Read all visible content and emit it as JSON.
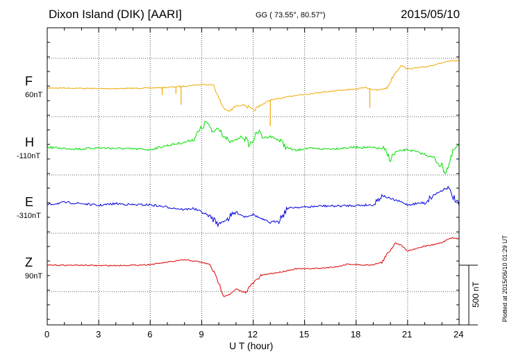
{
  "header": {
    "station": "Dixon Island (DIK)  [AARI]",
    "coords": "GG ( 73.55°,  80.57°)",
    "date": "2015/05/10"
  },
  "side_note": "Plotted at 2015/06/10 01:29 UT",
  "scale_bar": {
    "label": "500 nT",
    "value_nT": 500
  },
  "colors": {
    "F": "#f0a800",
    "H": "#00dd00",
    "E": "#0000dd",
    "Z": "#dd0000",
    "axis": "#000000"
  },
  "chart_data": {
    "type": "line",
    "xlabel": "U T (hour)",
    "xlim": [
      0,
      24
    ],
    "xticks": [
      0,
      3,
      6,
      9,
      12,
      15,
      18,
      21,
      24
    ],
    "xtick_labels": [
      "0",
      "3",
      "6",
      "9",
      "12",
      "15",
      "18",
      "21",
      "24"
    ],
    "series": [
      {
        "name": "F",
        "offset_label": "60nT",
        "color": "#f0a800",
        "points": [
          [
            0,
            -10
          ],
          [
            1,
            -10
          ],
          [
            2,
            -13
          ],
          [
            3,
            -15
          ],
          [
            4,
            -15
          ],
          [
            5,
            -13
          ],
          [
            6,
            -10
          ],
          [
            7,
            -5
          ],
          [
            8,
            5
          ],
          [
            8.6,
            15
          ],
          [
            9.2,
            20
          ],
          [
            9.7,
            15
          ],
          [
            10,
            -100
          ],
          [
            10.3,
            -180
          ],
          [
            10.6,
            -210
          ],
          [
            11,
            -160
          ],
          [
            11.5,
            -150
          ],
          [
            12,
            -200
          ],
          [
            12.5,
            -150
          ],
          [
            13,
            -110
          ],
          [
            13.5,
            -100
          ],
          [
            14,
            -85
          ],
          [
            14.5,
            -70
          ],
          [
            15,
            -65
          ],
          [
            16,
            -45
          ],
          [
            17,
            -30
          ],
          [
            18,
            -20
          ],
          [
            18.5,
            -5
          ],
          [
            19.2,
            -30
          ],
          [
            19.8,
            -10
          ],
          [
            20.2,
            100
          ],
          [
            20.6,
            180
          ],
          [
            21,
            150
          ],
          [
            22,
            165
          ],
          [
            23,
            200
          ],
          [
            23.5,
            215
          ],
          [
            24,
            220
          ]
        ],
        "spikes": [
          [
            6.7,
            -70
          ],
          [
            7.5,
            -60
          ],
          [
            7.8,
            -150
          ],
          [
            13,
            -330
          ],
          [
            18.8,
            -175
          ]
        ]
      },
      {
        "name": "H",
        "offset_label": "-110nT",
        "color": "#00dd00",
        "points": [
          [
            0,
            0
          ],
          [
            1,
            -10
          ],
          [
            2,
            -15
          ],
          [
            3,
            -5
          ],
          [
            4,
            -10
          ],
          [
            5,
            -15
          ],
          [
            6,
            -20
          ],
          [
            7,
            15
          ],
          [
            8,
            40
          ],
          [
            8.5,
            65
          ],
          [
            9,
            160
          ],
          [
            9.3,
            215
          ],
          [
            9.6,
            120
          ],
          [
            10,
            170
          ],
          [
            10.3,
            95
          ],
          [
            10.6,
            40
          ],
          [
            11,
            60
          ],
          [
            11.4,
            95
          ],
          [
            11.8,
            20
          ],
          [
            12.3,
            130
          ],
          [
            12.6,
            80
          ],
          [
            13,
            90
          ],
          [
            13.5,
            60
          ],
          [
            14,
            -5
          ],
          [
            14.5,
            -30
          ],
          [
            15,
            -10
          ],
          [
            16,
            -15
          ],
          [
            17,
            -10
          ],
          [
            18,
            0
          ],
          [
            19,
            -5
          ],
          [
            19.6,
            -15
          ],
          [
            20,
            -100
          ],
          [
            20.3,
            -40
          ],
          [
            21,
            -20
          ],
          [
            21.5,
            -40
          ],
          [
            22,
            -60
          ],
          [
            22.5,
            -90
          ],
          [
            23,
            -160
          ],
          [
            23.2,
            -210
          ],
          [
            23.4,
            -150
          ],
          [
            23.7,
            -20
          ],
          [
            24,
            20
          ]
        ]
      },
      {
        "name": "E",
        "offset_label": "-310nT",
        "color": "#0000dd",
        "points": [
          [
            0,
            0
          ],
          [
            1,
            20
          ],
          [
            2,
            10
          ],
          [
            3,
            -5
          ],
          [
            4,
            10
          ],
          [
            5,
            0
          ],
          [
            6,
            0
          ],
          [
            7,
            -20
          ],
          [
            8,
            -40
          ],
          [
            8.5,
            -30
          ],
          [
            9,
            -60
          ],
          [
            9.5,
            -100
          ],
          [
            10,
            -160
          ],
          [
            10.5,
            -120
          ],
          [
            11,
            -60
          ],
          [
            11.5,
            -100
          ],
          [
            12,
            -80
          ],
          [
            12.5,
            -120
          ],
          [
            13,
            -150
          ],
          [
            13.5,
            -130
          ],
          [
            14,
            -30
          ],
          [
            14.5,
            -20
          ],
          [
            15,
            -20
          ],
          [
            16,
            -10
          ],
          [
            17,
            -10
          ],
          [
            18,
            -5
          ],
          [
            19,
            0
          ],
          [
            19.5,
            80
          ],
          [
            20,
            50
          ],
          [
            20.5,
            30
          ],
          [
            21,
            0
          ],
          [
            22,
            20
          ],
          [
            22.5,
            80
          ],
          [
            23,
            120
          ],
          [
            23.3,
            150
          ],
          [
            23.6,
            80
          ],
          [
            24,
            -10
          ]
        ]
      },
      {
        "name": "Z",
        "offset_label": "90nT",
        "color": "#dd0000",
        "points": [
          [
            0,
            0
          ],
          [
            1,
            0
          ],
          [
            2,
            0
          ],
          [
            3,
            -3
          ],
          [
            4,
            -3
          ],
          [
            5,
            0
          ],
          [
            6,
            5
          ],
          [
            7,
            25
          ],
          [
            8,
            45
          ],
          [
            8.8,
            30
          ],
          [
            9.5,
            5
          ],
          [
            10,
            -150
          ],
          [
            10.3,
            -260
          ],
          [
            10.7,
            -240
          ],
          [
            11,
            -200
          ],
          [
            11.5,
            -230
          ],
          [
            12,
            -150
          ],
          [
            12.5,
            -85
          ],
          [
            13,
            -70
          ],
          [
            13.5,
            -60
          ],
          [
            14,
            -45
          ],
          [
            14.5,
            -30
          ],
          [
            15,
            -30
          ],
          [
            16,
            -25
          ],
          [
            17,
            -10
          ],
          [
            17.5,
            10
          ],
          [
            18.5,
            0
          ],
          [
            19,
            5
          ],
          [
            19.5,
            25
          ],
          [
            20,
            130
          ],
          [
            20.3,
            190
          ],
          [
            20.7,
            160
          ],
          [
            21,
            120
          ],
          [
            22,
            160
          ],
          [
            22.5,
            170
          ],
          [
            23,
            190
          ],
          [
            23.5,
            230
          ],
          [
            24,
            220
          ]
        ]
      }
    ]
  }
}
